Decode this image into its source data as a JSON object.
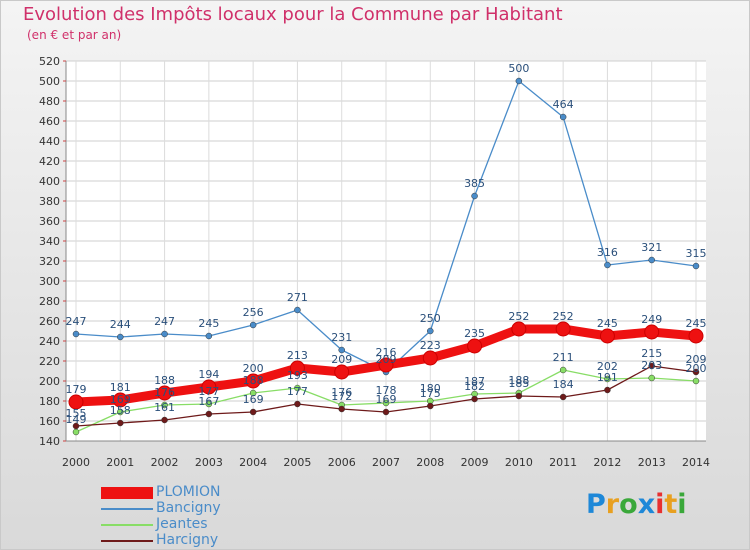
{
  "title": "Evolution des Impôts locaux pour la Commune par Habitant",
  "subtitle": "(en € et par an)",
  "logo": "Proxiti",
  "chart_data": {
    "type": "line",
    "x": [
      "2000",
      "2001",
      "2002",
      "2003",
      "2004",
      "2005",
      "2006",
      "2007",
      "2008",
      "2009",
      "2010",
      "2011",
      "2012",
      "2013",
      "2014"
    ],
    "ylim": [
      140,
      520
    ],
    "yticks": [
      140,
      160,
      180,
      200,
      220,
      240,
      260,
      280,
      300,
      320,
      340,
      360,
      380,
      400,
      420,
      440,
      460,
      480,
      500,
      520
    ],
    "grid": true,
    "legend_position": "bottom-left",
    "series": [
      {
        "name": "PLOMION",
        "color": "#ee1111",
        "values": [
          179,
          181,
          188,
          194,
          200,
          213,
          209,
          216,
          223,
          235,
          252,
          252,
          245,
          249,
          245
        ]
      },
      {
        "name": "Bancigny",
        "color": "#4a8cc9",
        "values": [
          247,
          244,
          247,
          245,
          256,
          271,
          231,
          209,
          250,
          385,
          500,
          464,
          316,
          321,
          315
        ]
      },
      {
        "name": "Jeantes",
        "color": "#88dd66",
        "values": [
          149,
          169,
          176,
          177,
          188,
          193,
          176,
          178,
          180,
          187,
          188,
          211,
          202,
          203,
          200
        ]
      },
      {
        "name": "Harcigny",
        "color": "#6e1a1a",
        "values": [
          155,
          158,
          161,
          167,
          169,
          177,
          172,
          169,
          175,
          182,
          185,
          184,
          191,
          215,
          209
        ]
      }
    ]
  }
}
